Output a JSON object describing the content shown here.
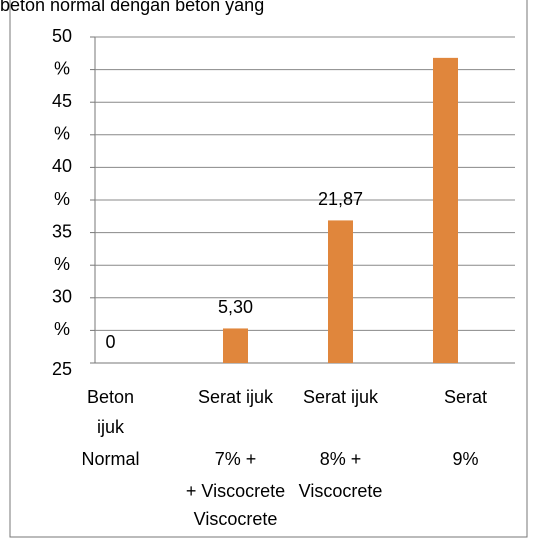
{
  "chart_data": {
    "type": "bar",
    "title": "beton normal dengan beton yang",
    "categories": [
      [
        "Beton",
        "ijuk",
        "Normal"
      ],
      [
        "Serat ijuk",
        "7% +",
        "+ Viscocrete",
        "Viscocrete"
      ],
      [
        "Serat ijuk",
        "8% +",
        "Viscocrete"
      ],
      [
        "Serat",
        "9%"
      ]
    ],
    "values": [
      0,
      5.3,
      21.87,
      46.8
    ],
    "value_labels": [
      "0",
      "5,30",
      "21,87",
      null
    ],
    "color": "#e0863c",
    "ylim": [
      0,
      50
    ],
    "yticks": [
      {
        "value": 0,
        "label": "25"
      },
      {
        "value": 5,
        "label": "%"
      },
      {
        "value": 10,
        "label": "30"
      },
      {
        "value": 15,
        "label": "%"
      },
      {
        "value": 20,
        "label": "35"
      },
      {
        "value": 25,
        "label": "%"
      },
      {
        "value": 30,
        "label": "40"
      },
      {
        "value": 35,
        "label": "%"
      },
      {
        "value": 40,
        "label": "45"
      },
      {
        "value": 45,
        "label": "%"
      },
      {
        "value": 50,
        "label": "50"
      }
    ],
    "grid": true
  }
}
